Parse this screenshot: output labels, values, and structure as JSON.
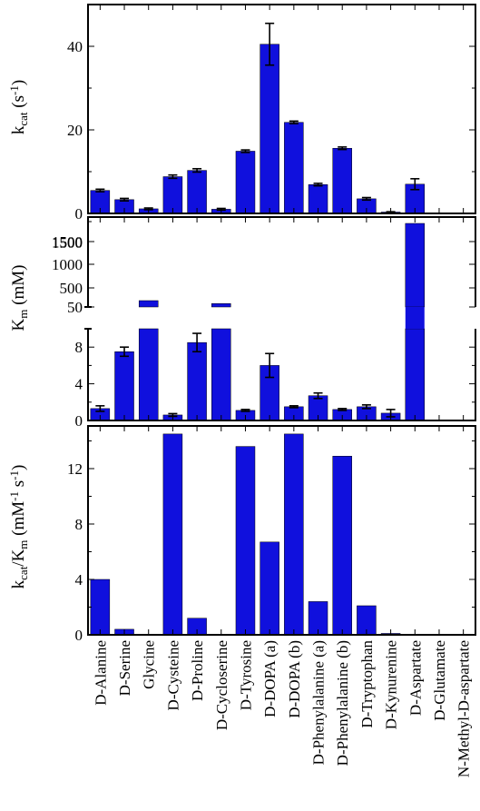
{
  "style": {
    "bar_color": "#1010DD",
    "axis_color": "#000000"
  },
  "chart_data": {
    "type": "bar",
    "categories": [
      "D-Alanine",
      "D-Serine",
      "Glycine",
      "D-Cysteine",
      "D-Proline",
      "D-Cycloserine",
      "D-Tyrosine",
      "D-DOPA (a)",
      "D-DOPA (b)",
      "D-Phenylalanine (a)",
      "D-Phenylalanine (b)",
      "D-Tryptophan",
      "D-Kynurenine",
      "D-Aspartate",
      "D-Glutamate",
      "N-Methyl-D-aspartate"
    ],
    "panels": [
      {
        "id": "kcat",
        "ylabel": {
          "main": "k",
          "sub": "cat",
          "rest": " (s",
          "sup": "-1",
          "end": ")"
        },
        "ylim": [
          0,
          50
        ],
        "yticks": [
          0,
          20,
          40
        ],
        "values": [
          5.5,
          3.3,
          1.1,
          8.8,
          10.3,
          1.0,
          14.9,
          40.5,
          21.8,
          6.9,
          15.6,
          3.5,
          0.3,
          7.0,
          null,
          null
        ],
        "errors": [
          0.3,
          0.3,
          0.2,
          0.4,
          0.4,
          0.2,
          0.3,
          5.0,
          0.3,
          0.3,
          0.3,
          0.3,
          0.1,
          1.3,
          null,
          null
        ]
      },
      {
        "id": "km",
        "ylabel": {
          "main": "K",
          "sub": "m",
          "rest": " (mM)"
        },
        "broken_axis": true,
        "upper": {
          "ytick_values": [
            50,
            500,
            1000,
            1500
          ],
          "ytick_labels": [
            "50",
            "500",
            "1000",
            "1500"
          ],
          "extra_tick_labels": [
            "1500"
          ],
          "values": [
            null,
            null,
            200,
            null,
            null,
            130,
            null,
            null,
            null,
            null,
            null,
            null,
            null,
            1900,
            null,
            null
          ]
        },
        "lower": {
          "ylim": [
            0,
            10
          ],
          "yticks": [
            0,
            4,
            8
          ],
          "values": [
            1.3,
            7.5,
            10,
            0.6,
            8.5,
            10,
            1.1,
            6.0,
            1.5,
            2.7,
            1.2,
            1.5,
            0.8,
            10,
            null,
            null
          ],
          "errors": [
            0.3,
            0.5,
            null,
            0.15,
            1.0,
            null,
            0.1,
            1.3,
            0.1,
            0.3,
            0.1,
            0.2,
            0.4,
            null,
            null,
            null
          ]
        }
      },
      {
        "id": "kcat_km",
        "ylabel": {
          "main": "k",
          "sub": "cat",
          "rest": "/K",
          "sub2": "m",
          "rest2": " (mM",
          "sup": "-1",
          "mid": " s",
          "sup2": "-1",
          "end": ")"
        },
        "ylim": [
          0,
          14.5
        ],
        "yticks": [
          0,
          4,
          8,
          12
        ],
        "values": [
          4.0,
          0.4,
          0.0,
          14.5,
          1.2,
          0.0,
          13.6,
          6.7,
          14.5,
          2.4,
          12.9,
          2.1,
          0.1,
          0.0,
          0.0,
          0.0
        ]
      }
    ]
  }
}
